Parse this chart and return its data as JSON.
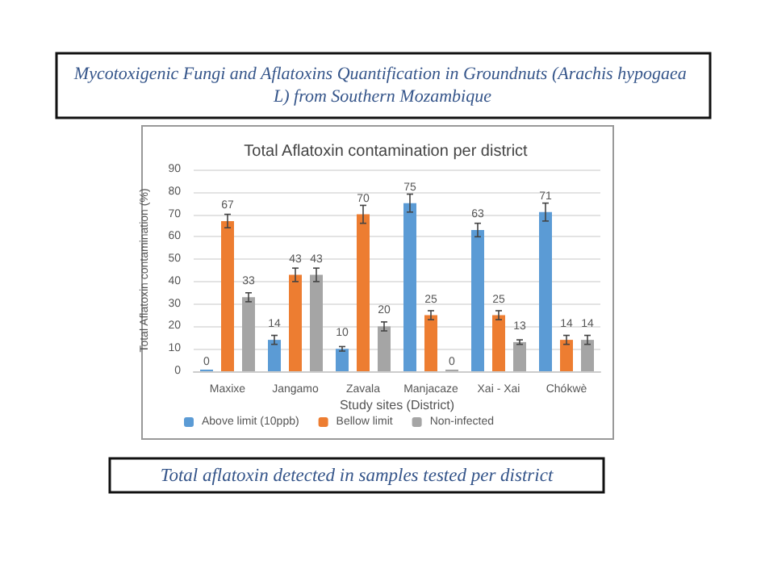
{
  "chart_data": {
    "type": "bar",
    "title": "Total Aflatoxin contamination per district",
    "xlabel": "Study sites (District)",
    "ylabel": "Total Aflatoxin contamination (%)",
    "annotations": [
      "Mycotoxigenic Fungi and Aflatoxins Quantification in Groundnuts (Arachis hypogaea L) from Southern Mozambique",
      "Total aflatoxin detected in samples tested per district"
    ],
    "categories": [
      "Maxixe",
      "Jangamo",
      "Zavala",
      "Manjacaze",
      "Xai - Xai",
      "Chókwè"
    ],
    "series": [
      {
        "name": "Above limit (10ppb)",
        "color": "#5b9bd5",
        "values": [
          0,
          14,
          10,
          75,
          63,
          71
        ],
        "errors": [
          null,
          2,
          1,
          4,
          3,
          4
        ]
      },
      {
        "name": "Bellow limit",
        "color": "#ed7d31",
        "values": [
          67,
          43,
          70,
          25,
          25,
          14
        ],
        "errors": [
          3,
          3,
          4,
          2,
          2,
          2
        ]
      },
      {
        "name": "Non-infected",
        "color": "#a5a5a5",
        "values": [
          33,
          43,
          20,
          0,
          13,
          14
        ],
        "errors": [
          2,
          3,
          2,
          null,
          1,
          2
        ]
      }
    ],
    "ylim": [
      0,
      90
    ],
    "yticks": [
      0,
      10,
      20,
      30,
      40,
      50,
      60,
      70,
      80,
      90
    ],
    "grid": "y",
    "legend": "bottom",
    "data_labels": true
  }
}
